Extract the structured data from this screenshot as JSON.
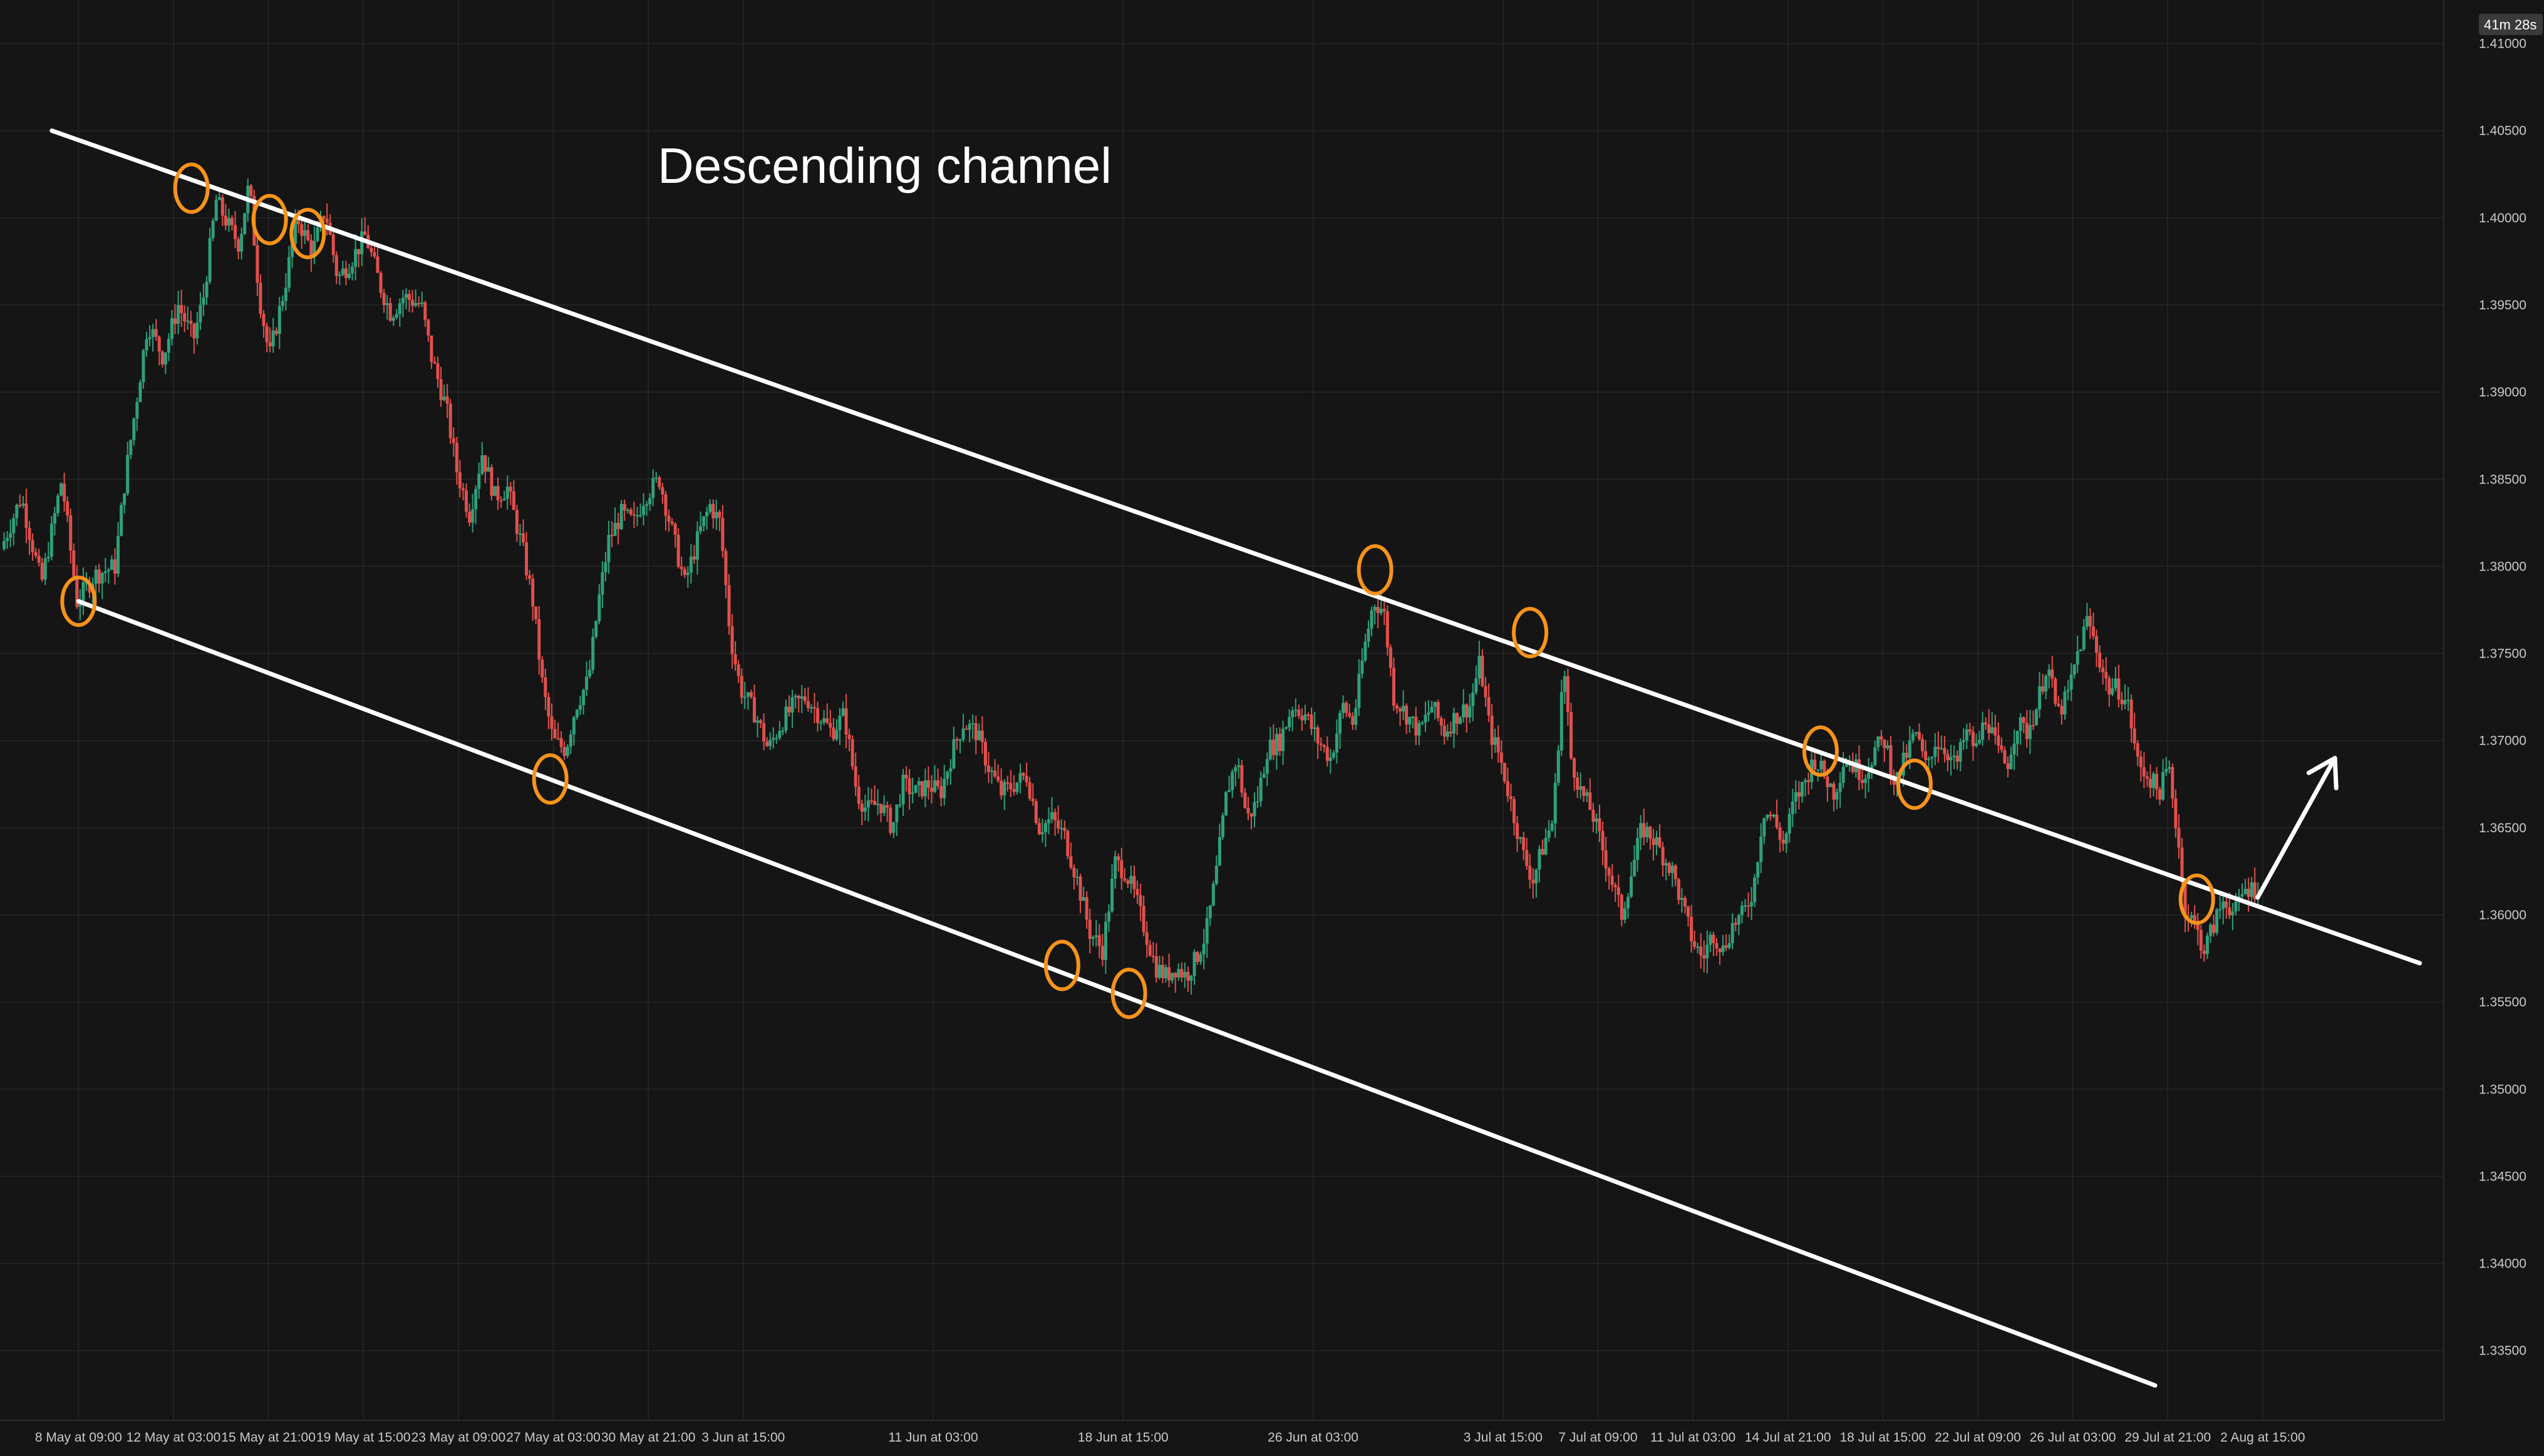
{
  "chart_data": {
    "type": "candlestick",
    "title": "",
    "annotations": {
      "title_text": "Descending channel",
      "timer": "41m 28s"
    },
    "price_axis": {
      "ylim": [
        1.331,
        1.4125
      ],
      "ticks": [
        "1.41000",
        "1.40500",
        "1.40000",
        "1.39500",
        "1.39000",
        "1.38500",
        "1.38000",
        "1.37500",
        "1.37000",
        "1.36500",
        "1.36000",
        "1.35500",
        "1.35000",
        "1.34500",
        "1.34000",
        "1.33500"
      ]
    },
    "time_axis": {
      "ticks": [
        {
          "label": "8 May at 09:00",
          "x": 0.0
        },
        {
          "label": "12 May at 03:00",
          "x": 3.75
        },
        {
          "label": "15 May at 21:00",
          "x": 7.5
        },
        {
          "label": "19 May at 15:00",
          "x": 11.25
        },
        {
          "label": "23 May at 09:00",
          "x": 15.0
        },
        {
          "label": "27 May at 03:00",
          "x": 18.75
        },
        {
          "label": "30 May at 21:00",
          "x": 22.5
        },
        {
          "label": "3 Jun at 15:00",
          "x": 26.25
        },
        {
          "label": "11 Jun at 03:00",
          "x": 33.75
        },
        {
          "label": "18 Jun at 15:00",
          "x": 41.25
        },
        {
          "label": "26 Jun at 03:00",
          "x": 48.75
        },
        {
          "label": "3 Jul at 15:00",
          "x": 56.25
        },
        {
          "label": "7 Jul at 09:00",
          "x": 60.0
        },
        {
          "label": "11 Jul at 03:00",
          "x": 63.75
        },
        {
          "label": "14 Jul at 21:00",
          "x": 67.5
        },
        {
          "label": "18 Jul at 15:00",
          "x": 71.25
        },
        {
          "label": "22 Jul at 09:00",
          "x": 75.0
        },
        {
          "label": "26 Jul at 03:00",
          "x": 78.75
        },
        {
          "label": "29 Jul at 21:00",
          "x": 82.5
        },
        {
          "label": "2 Aug at 15:00",
          "x": 86.25
        }
      ],
      "xlim": [
        -3.1,
        93.4
      ]
    },
    "price_path": [
      [
        -3.0,
        1.381
      ],
      [
        -2.2,
        1.384
      ],
      [
        -1.4,
        1.379
      ],
      [
        -0.6,
        1.385
      ],
      [
        0.0,
        1.378
      ],
      [
        0.7,
        1.3795
      ],
      [
        1.5,
        1.38
      ],
      [
        1.9,
        1.385
      ],
      [
        2.3,
        1.389
      ],
      [
        2.8,
        1.394
      ],
      [
        3.4,
        1.392
      ],
      [
        4.0,
        1.395
      ],
      [
        4.6,
        1.393
      ],
      [
        5.0,
        1.3955
      ],
      [
        5.5,
        1.401
      ],
      [
        6.0,
        1.3995
      ],
      [
        6.4,
        1.3985
      ],
      [
        6.8,
        1.402
      ],
      [
        7.2,
        1.3955
      ],
      [
        7.6,
        1.392
      ],
      [
        8.2,
        1.396
      ],
      [
        8.7,
        1.4
      ],
      [
        9.3,
        1.398
      ],
      [
        9.8,
        1.4005
      ],
      [
        10.3,
        1.3965
      ],
      [
        10.8,
        1.3975
      ],
      [
        11.4,
        1.399
      ],
      [
        12.0,
        1.396
      ],
      [
        12.4,
        1.3945
      ],
      [
        12.9,
        1.3955
      ],
      [
        13.6,
        1.395
      ],
      [
        14.0,
        1.392
      ],
      [
        14.6,
        1.389
      ],
      [
        15.0,
        1.3855
      ],
      [
        15.5,
        1.383
      ],
      [
        16.0,
        1.3865
      ],
      [
        16.5,
        1.384
      ],
      [
        17.0,
        1.3845
      ],
      [
        17.6,
        1.381
      ],
      [
        18.0,
        1.378
      ],
      [
        18.4,
        1.373
      ],
      [
        18.8,
        1.37
      ],
      [
        19.3,
        1.3695
      ],
      [
        19.7,
        1.372
      ],
      [
        20.2,
        1.3735
      ],
      [
        20.6,
        1.378
      ],
      [
        21.0,
        1.3815
      ],
      [
        21.5,
        1.383
      ],
      [
        22.0,
        1.3825
      ],
      [
        22.4,
        1.384
      ],
      [
        23.0,
        1.385
      ],
      [
        23.5,
        1.382
      ],
      [
        24.0,
        1.379
      ],
      [
        24.6,
        1.382
      ],
      [
        25.0,
        1.3835
      ],
      [
        25.4,
        1.3825
      ],
      [
        25.8,
        1.376
      ],
      [
        26.2,
        1.373
      ],
      [
        26.8,
        1.3715
      ],
      [
        27.3,
        1.3695
      ],
      [
        27.8,
        1.371
      ],
      [
        28.3,
        1.372
      ],
      [
        28.8,
        1.3725
      ],
      [
        29.3,
        1.3715
      ],
      [
        29.8,
        1.3705
      ],
      [
        30.3,
        1.3715
      ],
      [
        30.8,
        1.367
      ],
      [
        31.2,
        1.366
      ],
      [
        31.7,
        1.3665
      ],
      [
        32.2,
        1.365
      ],
      [
        32.6,
        1.3675
      ],
      [
        33.1,
        1.367
      ],
      [
        33.6,
        1.3675
      ],
      [
        34.1,
        1.367
      ],
      [
        34.6,
        1.3695
      ],
      [
        35.0,
        1.371
      ],
      [
        35.5,
        1.3705
      ],
      [
        36.0,
        1.3685
      ],
      [
        36.5,
        1.367
      ],
      [
        37.0,
        1.3675
      ],
      [
        37.5,
        1.368
      ],
      [
        38.0,
        1.365
      ],
      [
        38.5,
        1.3655
      ],
      [
        39.0,
        1.3645
      ],
      [
        39.5,
        1.362
      ],
      [
        40.0,
        1.359
      ],
      [
        40.5,
        1.358
      ],
      [
        41.0,
        1.363
      ],
      [
        41.4,
        1.3625
      ],
      [
        41.8,
        1.361
      ],
      [
        42.2,
        1.359
      ],
      [
        42.6,
        1.357
      ],
      [
        43.0,
        1.3565
      ],
      [
        43.4,
        1.357
      ],
      [
        43.8,
        1.3565
      ],
      [
        44.2,
        1.3575
      ],
      [
        44.6,
        1.359
      ],
      [
        45.0,
        1.3625
      ],
      [
        45.4,
        1.367
      ],
      [
        45.8,
        1.369
      ],
      [
        46.2,
        1.3655
      ],
      [
        46.6,
        1.3665
      ],
      [
        47.0,
        1.3695
      ],
      [
        47.5,
        1.37
      ],
      [
        48.0,
        1.372
      ],
      [
        48.5,
        1.3715
      ],
      [
        49.0,
        1.37
      ],
      [
        49.5,
        1.369
      ],
      [
        50.0,
        1.372
      ],
      [
        50.4,
        1.371
      ],
      [
        50.8,
        1.375
      ],
      [
        51.2,
        1.378
      ],
      [
        51.6,
        1.3775
      ],
      [
        52.0,
        1.3725
      ],
      [
        52.5,
        1.3715
      ],
      [
        53.0,
        1.3705
      ],
      [
        53.5,
        1.372
      ],
      [
        54.0,
        1.3705
      ],
      [
        54.5,
        1.3715
      ],
      [
        55.0,
        1.372
      ],
      [
        55.4,
        1.3745
      ],
      [
        55.8,
        1.3705
      ],
      [
        56.2,
        1.369
      ],
      [
        56.7,
        1.366
      ],
      [
        57.1,
        1.3635
      ],
      [
        57.5,
        1.362
      ],
      [
        57.9,
        1.364
      ],
      [
        58.3,
        1.3655
      ],
      [
        58.7,
        1.3745
      ],
      [
        59.0,
        1.369
      ],
      [
        59.4,
        1.367
      ],
      [
        59.8,
        1.366
      ],
      [
        60.2,
        1.364
      ],
      [
        60.6,
        1.362
      ],
      [
        61.0,
        1.36
      ],
      [
        61.4,
        1.3625
      ],
      [
        61.8,
        1.365
      ],
      [
        62.2,
        1.3645
      ],
      [
        62.6,
        1.3635
      ],
      [
        63.0,
        1.3625
      ],
      [
        63.4,
        1.3605
      ],
      [
        63.8,
        1.3585
      ],
      [
        64.2,
        1.3575
      ],
      [
        64.6,
        1.359
      ],
      [
        65.0,
        1.358
      ],
      [
        65.4,
        1.3595
      ],
      [
        65.8,
        1.36
      ],
      [
        66.2,
        1.3615
      ],
      [
        66.6,
        1.366
      ],
      [
        67.0,
        1.3655
      ],
      [
        67.4,
        1.364
      ],
      [
        67.8,
        1.3665
      ],
      [
        68.2,
        1.3675
      ],
      [
        68.6,
        1.369
      ],
      [
        69.0,
        1.368
      ],
      [
        69.4,
        1.367
      ],
      [
        69.8,
        1.369
      ],
      [
        70.2,
        1.3685
      ],
      [
        70.6,
        1.368
      ],
      [
        71.0,
        1.3695
      ],
      [
        71.4,
        1.37
      ],
      [
        71.8,
        1.3675
      ],
      [
        72.2,
        1.369
      ],
      [
        72.6,
        1.3705
      ],
      [
        73.0,
        1.3685
      ],
      [
        73.4,
        1.37
      ],
      [
        73.8,
        1.3695
      ],
      [
        74.2,
        1.3685
      ],
      [
        74.6,
        1.3705
      ],
      [
        75.0,
        1.3695
      ],
      [
        75.4,
        1.3715
      ],
      [
        75.8,
        1.3695
      ],
      [
        76.2,
        1.3685
      ],
      [
        76.6,
        1.371
      ],
      [
        77.0,
        1.3705
      ],
      [
        77.4,
        1.372
      ],
      [
        77.8,
        1.3745
      ],
      [
        78.2,
        1.3715
      ],
      [
        78.6,
        1.3725
      ],
      [
        79.0,
        1.375
      ],
      [
        79.4,
        1.377
      ],
      [
        79.8,
        1.375
      ],
      [
        80.2,
        1.373
      ],
      [
        80.6,
        1.373
      ],
      [
        81.0,
        1.372
      ],
      [
        81.4,
        1.3685
      ],
      [
        81.8,
        1.368
      ],
      [
        82.2,
        1.367
      ],
      [
        82.6,
        1.3685
      ],
      [
        83.0,
        1.364
      ],
      [
        83.2,
        1.3605
      ],
      [
        83.6,
        1.3595
      ],
      [
        84.0,
        1.358
      ],
      [
        84.4,
        1.3595
      ],
      [
        84.8,
        1.361
      ],
      [
        85.2,
        1.36
      ],
      [
        85.6,
        1.3615
      ],
      [
        86.0,
        1.3615
      ]
    ],
    "channel": {
      "upper": [
        [
          -1.05,
          1.405
        ],
        [
          86.05,
          1.3605
        ]
      ],
      "upper_extension": [
        86.05,
        92.45
      ],
      "lower": [
        [
          0.0,
          1.378
        ],
        [
          82.0,
          1.333
        ]
      ],
      "color": "#ffffff"
    },
    "touch_points": [
      {
        "x": 4.46,
        "y": 1.4017
      },
      {
        "x": 7.55,
        "y": 1.3999
      },
      {
        "x": 9.05,
        "y": 1.3991
      },
      {
        "x": 0.0,
        "y": 1.378
      },
      {
        "x": 18.63,
        "y": 1.3678
      },
      {
        "x": 38.84,
        "y": 1.3571
      },
      {
        "x": 41.48,
        "y": 1.3555
      },
      {
        "x": 51.2,
        "y": 1.3798
      },
      {
        "x": 57.32,
        "y": 1.3762
      },
      {
        "x": 68.79,
        "y": 1.3694
      },
      {
        "x": 72.5,
        "y": 1.3675
      },
      {
        "x": 83.65,
        "y": 1.3609
      }
    ],
    "arrow": {
      "from": [
        86.05,
        1.361
      ],
      "to": [
        89.1,
        1.369
      ],
      "color": "#ffffff"
    },
    "colors": {
      "background": "#151515",
      "grid": "#262626",
      "up_candle": "#2fa07a",
      "down_candle": "#e0504c",
      "marker": "#f7931a",
      "annotation": "#ffffff"
    },
    "grid": true,
    "legend": "none"
  }
}
